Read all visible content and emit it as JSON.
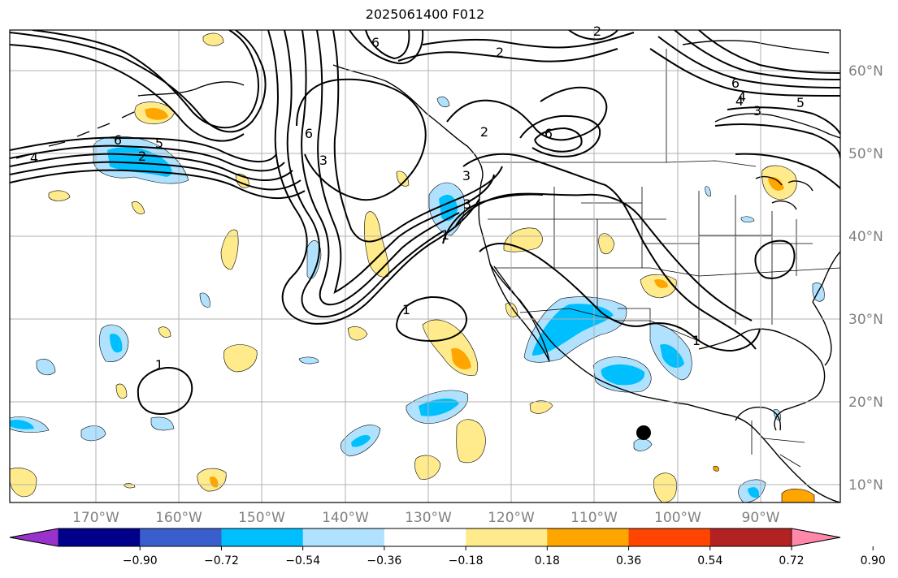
{
  "title": "2025061400 F012",
  "longitude_labels": [
    "170°W",
    "160°W",
    "150°W",
    "140°W",
    "130°W",
    "120°W",
    "110°W",
    "100°W",
    "90°W"
  ],
  "latitude_labels": [
    "60°N",
    "50°N",
    "40°N",
    "30°N",
    "20°N",
    "10°N"
  ],
  "contour_labels": [
    "6",
    "6",
    "5",
    "4",
    "4",
    "3",
    "3",
    "2",
    "2",
    "2",
    "6",
    "3",
    "1",
    "1",
    "1",
    "1",
    "6",
    "5",
    "4",
    "3",
    "6",
    "2"
  ],
  "colorbar": {
    "tick_labels": [
      "−0.90",
      "−0.72",
      "−0.54",
      "−0.36",
      "−0.18",
      "0.18",
      "0.36",
      "0.54",
      "0.72",
      "0.90"
    ],
    "colors": [
      "#9932cc",
      "#00008b",
      "#3a5fcd",
      "#00bfff",
      "#b0e2ff",
      "#ffffff",
      "#ffeb8b",
      "#ffa500",
      "#ff4500",
      "#b22222",
      "#ff88aa"
    ]
  },
  "colors": {
    "fill_light_blue": "#b0e2ff",
    "fill_blue": "#00bfff",
    "fill_light_yellow": "#ffeb8b",
    "fill_orange": "#ffa500",
    "contour": "#000000",
    "grid": "#b0b0b0",
    "label": "#808080"
  },
  "marker": "black-dot"
}
